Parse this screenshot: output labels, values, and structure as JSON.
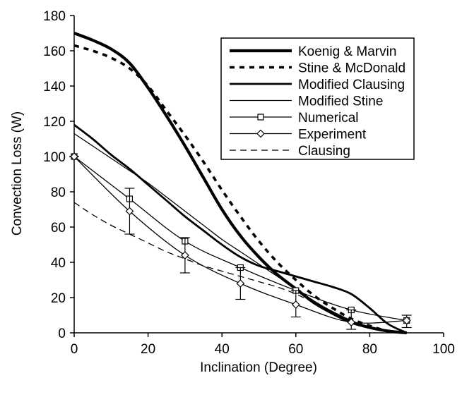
{
  "chart_data": {
    "type": "line",
    "title": "",
    "xlabel": "Inclination (Degree)",
    "ylabel": "Convection Loss (W)",
    "xlim": [
      0,
      100
    ],
    "ylim": [
      0,
      180
    ],
    "xticks": [
      0,
      20,
      40,
      60,
      80,
      100
    ],
    "yticks": [
      0,
      20,
      40,
      60,
      80,
      100,
      120,
      140,
      160,
      180
    ],
    "grid": false,
    "legend_position": "top-right",
    "series": [
      {
        "name": "Koenig & Marvin",
        "color": "#000000",
        "style": "solid-thick",
        "x": [
          0,
          5,
          10,
          15,
          20,
          25,
          30,
          35,
          40,
          45,
          50,
          55,
          60,
          65,
          70,
          75,
          80,
          85,
          90
        ],
        "y": [
          170,
          166,
          161,
          153,
          139,
          123,
          106,
          88,
          70,
          55,
          43,
          33,
          25,
          17,
          11,
          6,
          3,
          1,
          0
        ]
      },
      {
        "name": "Stine & McDonald",
        "color": "#000000",
        "style": "dotted-thick",
        "x": [
          0,
          5,
          10,
          15,
          20,
          25,
          30,
          35,
          40,
          45,
          50,
          55,
          60,
          65,
          70,
          75,
          80,
          85,
          90
        ],
        "y": [
          163,
          160,
          156,
          150,
          140,
          126,
          112,
          97,
          81,
          66,
          52,
          40,
          30,
          21,
          14,
          8,
          4,
          1,
          0
        ]
      },
      {
        "name": "Modified Clausing",
        "color": "#000000",
        "style": "solid-medium",
        "x": [
          0,
          5,
          10,
          15,
          20,
          25,
          30,
          35,
          40,
          45,
          50,
          55,
          60,
          65,
          70,
          75,
          80,
          85,
          90
        ],
        "y": [
          118,
          110,
          101,
          93,
          84,
          75,
          66,
          58,
          50,
          43,
          38,
          35,
          32,
          29,
          26,
          22,
          14,
          5,
          0
        ]
      },
      {
        "name": "Modified Stine",
        "color": "#000000",
        "style": "solid-thin",
        "x": [
          0,
          5,
          10,
          15,
          20,
          25,
          30,
          35,
          40,
          45,
          50,
          55,
          60,
          65,
          70,
          75,
          80,
          85,
          90
        ],
        "y": [
          113,
          106,
          99,
          92,
          85,
          77,
          69,
          61,
          53,
          46,
          39,
          32,
          25,
          18,
          12,
          7,
          3,
          1,
          0
        ]
      },
      {
        "name": "Numerical",
        "color": "#000000",
        "style": "solid-thin",
        "marker": "square",
        "x": [
          0,
          15,
          30,
          45,
          60,
          75,
          90
        ],
        "y": [
          100,
          76,
          52,
          37,
          24,
          13,
          7
        ]
      },
      {
        "name": "Experiment",
        "color": "#000000",
        "style": "solid-thin",
        "marker": "diamond",
        "x": [
          0,
          15,
          30,
          45,
          60,
          75,
          90
        ],
        "y": [
          100,
          69,
          44,
          28,
          16,
          6,
          7
        ],
        "error_high": [
          100,
          82,
          54,
          37,
          24,
          13,
          10
        ],
        "error_low": [
          100,
          56,
          34,
          19,
          9,
          2,
          3
        ]
      },
      {
        "name": "Clausing",
        "color": "#000000",
        "style": "dashed",
        "x": [
          0,
          5,
          10,
          15,
          20,
          25,
          30,
          35,
          40,
          45,
          50,
          55,
          60,
          65,
          70,
          75,
          80,
          85,
          90
        ],
        "y": [
          74,
          67,
          61,
          56,
          51,
          46,
          42,
          38,
          35,
          32,
          29,
          26,
          22,
          17,
          12,
          7,
          3,
          1,
          0
        ]
      }
    ]
  }
}
